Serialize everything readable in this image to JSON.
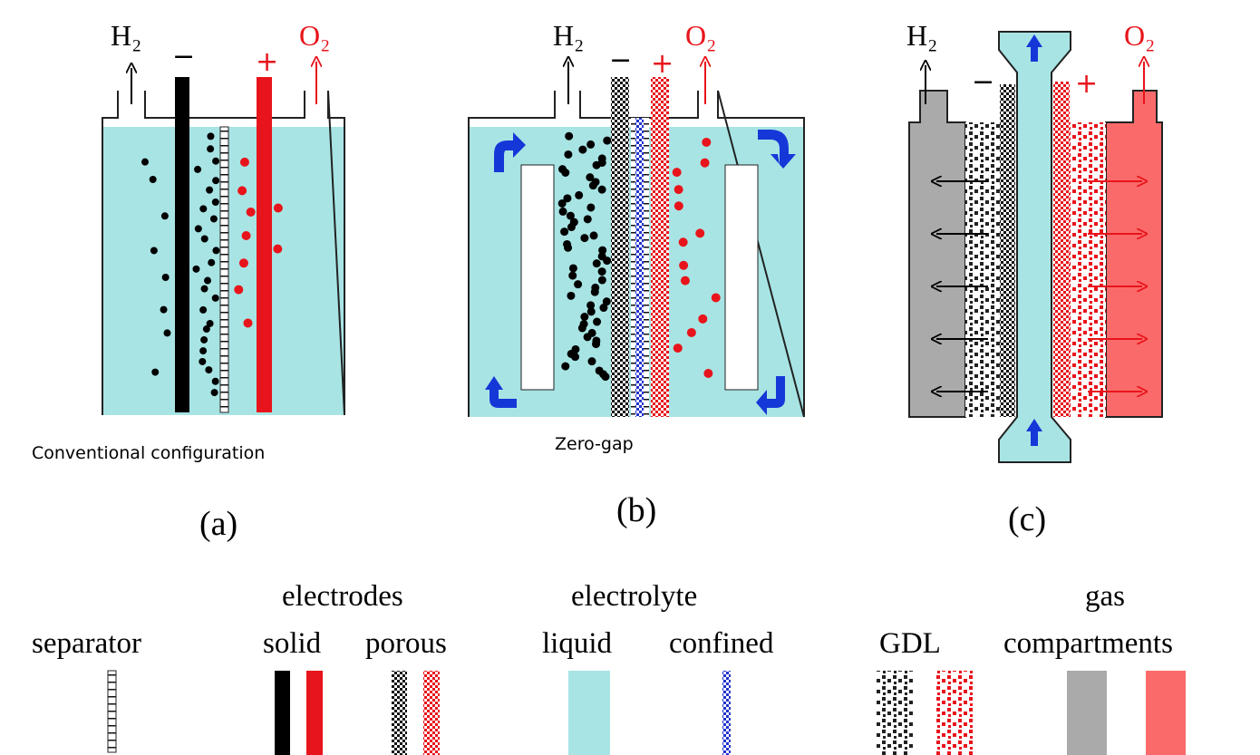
{
  "panels": [
    {
      "gas_left": "H₂",
      "gas_right": "O₂",
      "minus": "−",
      "plus": "+",
      "caption": "Conventional configuration",
      "label": "(a)"
    },
    {
      "gas_left": "H₂",
      "gas_right": "O₂",
      "minus": "−",
      "plus": "+",
      "caption": "Zero-gap",
      "label": "(b)"
    },
    {
      "gas_left": "H₂",
      "gas_right": "O₂",
      "minus": "−",
      "plus": "+",
      "label": "(c)"
    }
  ],
  "legend": {
    "separator": "separator",
    "electrodes": {
      "heading": "electrodes",
      "solid": "solid",
      "porous": "porous"
    },
    "electrolyte": {
      "heading": "electrolyte",
      "liquid": "liquid",
      "confined": "confined"
    },
    "gdl": "GDL",
    "gas_compartments": {
      "heading": "gas",
      "label": "compartments"
    }
  }
}
